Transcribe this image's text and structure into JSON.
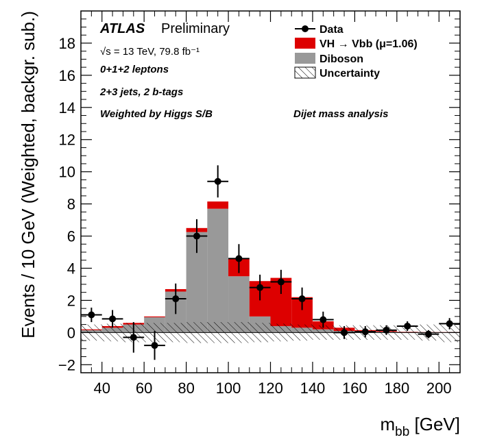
{
  "chart_data": {
    "type": "bar",
    "stacked": true,
    "experiment": "ATLAS",
    "status": "Preliminary",
    "energy_text": "√s = 13 TeV, 79.8 fb⁻¹",
    "annotations": [
      "0+1+2 leptons",
      "2+3 jets, 2 b-tags",
      "Weighted by Higgs S/B",
      "Dijet mass analysis"
    ],
    "xlabel": "m_bb [GeV]",
    "ylabel": "Events / 10 GeV (Weighted, backgr. sub.)",
    "xlim": [
      30,
      210
    ],
    "ylim": [
      -2.5,
      20
    ],
    "x_ticks": [
      40,
      60,
      80,
      100,
      120,
      140,
      160,
      180,
      200
    ],
    "y_ticks": [
      -2,
      0,
      2,
      4,
      6,
      8,
      10,
      12,
      14,
      16,
      18
    ],
    "bin_edges": [
      30,
      40,
      50,
      60,
      70,
      80,
      90,
      100,
      110,
      120,
      130,
      140,
      150,
      160,
      170,
      180,
      190,
      200,
      210
    ],
    "legend_position": "top-right",
    "legend": [
      {
        "label": "Data",
        "kind": "marker",
        "color": "#000000"
      },
      {
        "label": "VH → Vbb (μ=1.06)",
        "kind": "fill",
        "color": "#dd0000"
      },
      {
        "label": "Diboson",
        "kind": "fill",
        "color": "#999999"
      },
      {
        "label": "Uncertainty",
        "kind": "hatch",
        "color": "#000000"
      }
    ],
    "series": [
      {
        "name": "Diboson",
        "color": "#999999",
        "values": [
          0.15,
          0.3,
          0.5,
          0.95,
          2.55,
          6.25,
          7.7,
          3.5,
          1.0,
          0.4,
          0.3,
          0.2,
          0.1,
          0.05,
          0.05,
          0.03,
          0.02,
          0.02
        ]
      },
      {
        "name": "VH → Vbb (μ=1.06)",
        "color": "#dd0000",
        "values": [
          0.05,
          0.1,
          0.1,
          0.05,
          0.15,
          0.25,
          0.45,
          1.1,
          2.2,
          3.0,
          1.9,
          0.5,
          0.2,
          0.1,
          0.05,
          0.02,
          0.01,
          0.01
        ]
      }
    ],
    "uncertainty_halfwidth": [
      0.5,
      0.55,
      0.6,
      0.6,
      0.6,
      0.65,
      0.65,
      0.65,
      0.6,
      0.55,
      0.5,
      0.45,
      0.45,
      0.45,
      0.45,
      0.45,
      0.5,
      0.6
    ],
    "data": {
      "x": [
        35,
        45,
        55,
        65,
        75,
        85,
        95,
        105,
        115,
        125,
        135,
        145,
        155,
        165,
        175,
        185,
        195,
        205
      ],
      "y": [
        1.1,
        0.85,
        -0.3,
        -0.8,
        2.1,
        6.0,
        9.4,
        4.6,
        2.8,
        3.15,
        2.1,
        0.8,
        0.0,
        0.05,
        0.15,
        0.4,
        -0.1,
        0.55
      ],
      "yerr": [
        0.45,
        0.55,
        0.95,
        0.9,
        0.95,
        1.05,
        1.0,
        0.9,
        0.8,
        0.75,
        0.7,
        0.5,
        0.4,
        0.35,
        0.3,
        0.3,
        0.25,
        0.35
      ]
    }
  }
}
